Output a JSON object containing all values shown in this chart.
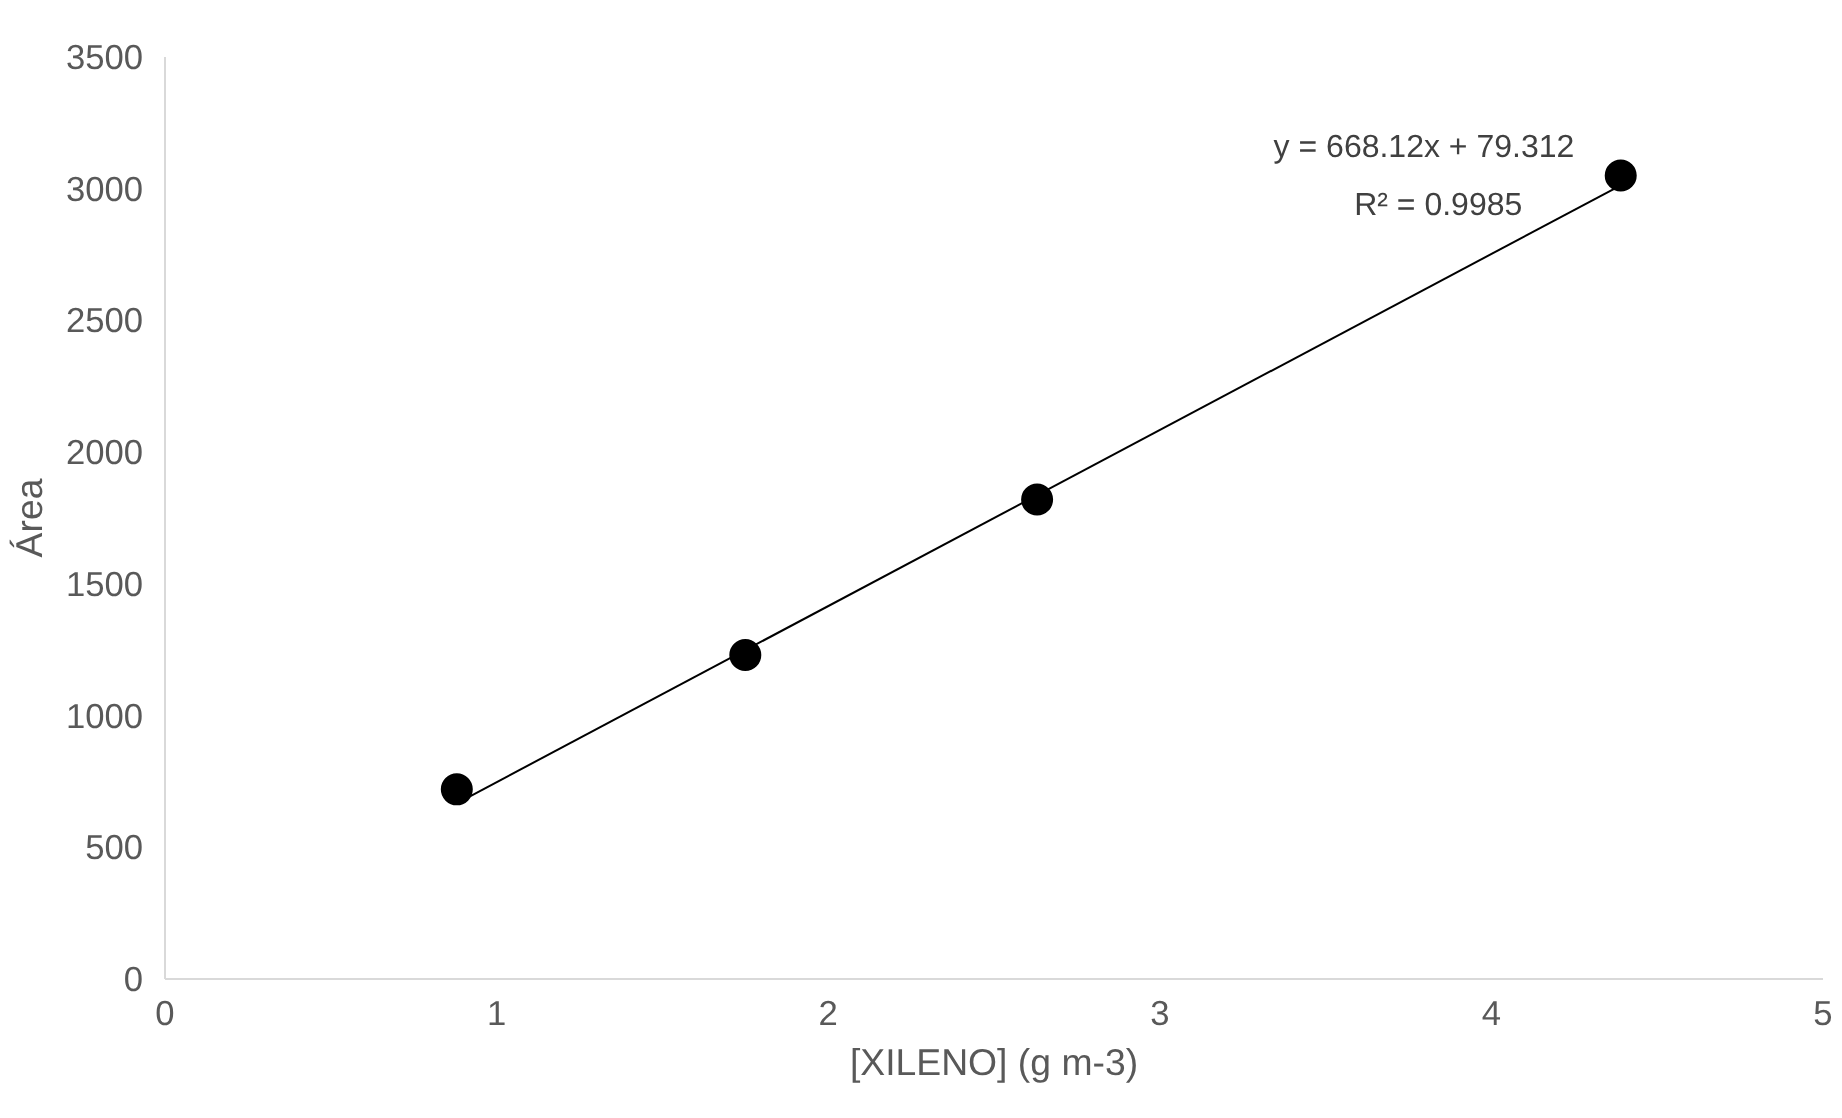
{
  "chart_data": {
    "type": "scatter",
    "xlabel": "[XILENO] (g m-3)",
    "ylabel": "Área",
    "xlim": [
      0,
      5
    ],
    "xticks": [
      0,
      1,
      2,
      3,
      4,
      5
    ],
    "ylim": [
      0,
      3500
    ],
    "yticks": [
      0,
      500,
      1000,
      1500,
      2000,
      2500,
      3000,
      3500
    ],
    "grid": false,
    "marker": "circle",
    "series": [
      {
        "color": "#000000",
        "x": [
          0.88,
          1.75,
          2.63,
          4.39
        ],
        "values": [
          720,
          1230,
          1820,
          3050
        ]
      },
      {
        "type": "line",
        "color": "#000000",
        "line_style": "solid",
        "marker": "none",
        "x": [
          0.88,
          4.39
        ],
        "values": [
          667,
          3013
        ]
      }
    ],
    "annotations": [
      "y = 668.12x + 79.312",
      "R² = 0.9985"
    ]
  }
}
